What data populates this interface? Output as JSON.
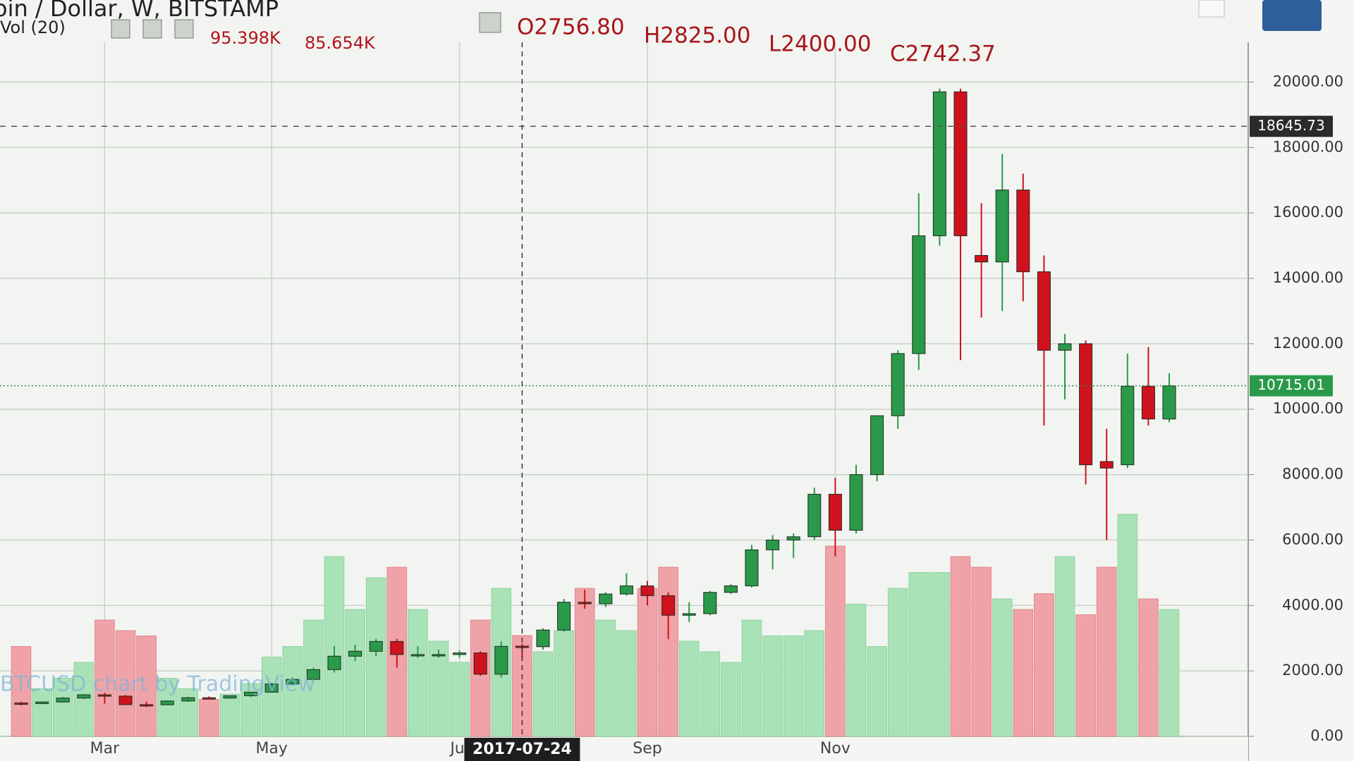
{
  "chart_data": {
    "type": "candlestick",
    "symbol": "Bitcoin / Dollar, W, BITSTAMP",
    "ohlc_legend": [
      "O2756.80",
      "H2825.00",
      "L2400.00",
      "C2742.37"
    ],
    "volume_indicator": {
      "label": "Vol (20)",
      "values": [
        "95.398K",
        "85.654K"
      ]
    },
    "watermark": "BTCUSD chart by TradingView",
    "crosshair_date": "2017-07-24",
    "categories": [
      null,
      null,
      null,
      null,
      "Mar",
      null,
      null,
      null,
      null,
      null,
      null,
      null,
      "May",
      null,
      null,
      null,
      null,
      null,
      null,
      null,
      null,
      "Jul",
      null,
      null,
      null,
      null,
      null,
      null,
      null,
      null,
      "Sep",
      null,
      null,
      null,
      null,
      null,
      null,
      null,
      null,
      "Nov",
      null,
      null,
      null,
      null,
      null,
      null,
      null,
      null,
      null,
      null,
      null,
      null,
      null,
      null,
      null,
      null
    ],
    "open": [
      1020,
      1000,
      1050,
      1170,
      1270,
      1230,
      970,
      965,
      1080,
      1180,
      1170,
      1240,
      1350,
      1600,
      1740,
      2040,
      2450,
      2600,
      2900,
      2500,
      2500,
      2500,
      2550,
      1900,
      2756.8,
      2740,
      3250,
      4100,
      4050,
      4350,
      4600,
      4300,
      3700,
      3750,
      4400,
      4600,
      5700,
      6000,
      6100,
      7400,
      6300,
      8000,
      9800,
      11700,
      15300,
      19700,
      14700,
      14500,
      16700,
      14200,
      11800,
      12000,
      8400,
      8300,
      10700,
      9700
    ],
    "high": [
      1060,
      1070,
      1200,
      1290,
      1330,
      1260,
      1060,
      1100,
      1210,
      1220,
      1250,
      1360,
      1640,
      1800,
      2100,
      2760,
      2800,
      2980,
      2980,
      2750,
      2650,
      2620,
      2600,
      2900,
      2825,
      3300,
      4200,
      4480,
      4400,
      4980,
      4750,
      4400,
      4100,
      4450,
      4650,
      5850,
      6150,
      6200,
      7600,
      7900,
      8300,
      9800,
      11800,
      16600,
      19800,
      19800,
      16300,
      17800,
      17200,
      14700,
      12300,
      12100,
      9400,
      11700,
      11900,
      11100
    ],
    "low": [
      950,
      980,
      1040,
      1140,
      1000,
      950,
      890,
      950,
      1060,
      1140,
      1160,
      1210,
      1340,
      1550,
      1700,
      1950,
      2300,
      2450,
      2100,
      2400,
      2400,
      2400,
      1850,
      1800,
      2400,
      2650,
      3200,
      3900,
      3950,
      4300,
      4000,
      2970,
      3500,
      3700,
      4350,
      4550,
      5100,
      5450,
      6000,
      5500,
      6200,
      7800,
      9400,
      11200,
      15000,
      11500,
      12800,
      13000,
      13300,
      9500,
      10300,
      7700,
      6000,
      8200,
      9500,
      9600
    ],
    "close": [
      1000,
      1050,
      1170,
      1270,
      1230,
      970,
      965,
      1080,
      1180,
      1170,
      1240,
      1350,
      1600,
      1740,
      2040,
      2450,
      2600,
      2900,
      2500,
      2500,
      2500,
      2550,
      1900,
      2750,
      2742.37,
      3250,
      4100,
      4050,
      4350,
      4600,
      4300,
      3700,
      3750,
      4400,
      4600,
      5700,
      6000,
      6100,
      7400,
      6300,
      8000,
      9800,
      11700,
      15300,
      19700,
      15300,
      14500,
      16700,
      14200,
      11800,
      12000,
      8300,
      8200,
      10700,
      9700,
      10715.01
    ],
    "volume": [
      85,
      45,
      55,
      70,
      110,
      100,
      95,
      55,
      45,
      35,
      40,
      50,
      75,
      85,
      110,
      170,
      120,
      150,
      160,
      120,
      90,
      70,
      110,
      140,
      95.398,
      80,
      100,
      140,
      110,
      100,
      140,
      160,
      90,
      80,
      70,
      110,
      95,
      95,
      100,
      180,
      125,
      85,
      140,
      155,
      155,
      170,
      160,
      130,
      120,
      135,
      170,
      115,
      160,
      210,
      130,
      120
    ],
    "volume_ylim": [
      0,
      650
    ],
    "up_color": "#2a9a4a",
    "down_color": "#d0121e",
    "volume_up_color": "#a9e2b7",
    "volume_down_color": "#efa3a8",
    "ylim": [
      0,
      21000
    ],
    "yticks": [
      {
        "value": 0,
        "label": "0.00"
      },
      {
        "value": 2000,
        "label": "2000.00"
      },
      {
        "value": 4000,
        "label": "4000.00"
      },
      {
        "value": 6000,
        "label": "6000.00"
      },
      {
        "value": 8000,
        "label": "8000.00"
      },
      {
        "value": 10000,
        "label": "10000.00"
      },
      {
        "value": 12000,
        "label": "12000.00"
      },
      {
        "value": 14000,
        "label": "14000.00"
      },
      {
        "value": 16000,
        "label": "16000.00"
      },
      {
        "value": 18000,
        "label": "18000.00"
      },
      {
        "value": 20000,
        "label": "20000.00"
      }
    ],
    "price_lines": [
      {
        "value": 18645.73,
        "color": "#2b2b2b"
      },
      {
        "value": 10715.01,
        "color": "#2a9a4a"
      }
    ],
    "grid": true
  }
}
